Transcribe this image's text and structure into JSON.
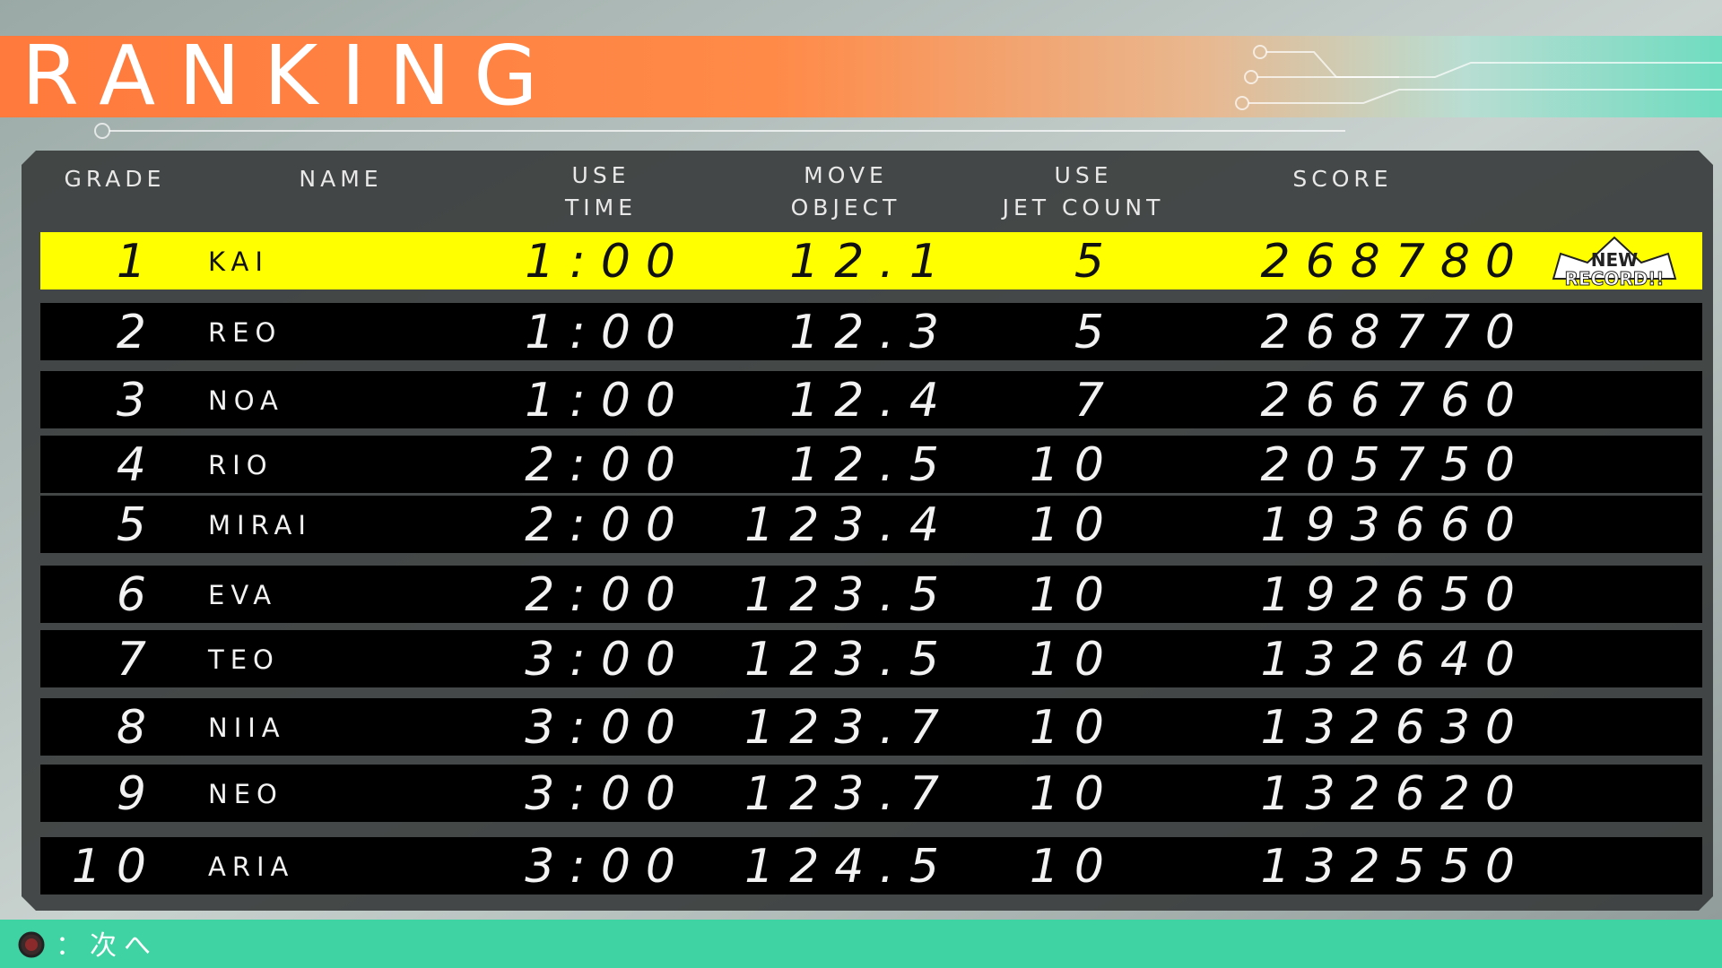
{
  "header": {
    "title": "RANKING"
  },
  "table": {
    "columns": [
      [
        "GRADE"
      ],
      [
        "NAME"
      ],
      [
        "USE",
        "TIME"
      ],
      [
        "MOVE",
        "OBJECT"
      ],
      [
        "USE",
        "JET COUNT"
      ],
      [
        "SCORE"
      ]
    ],
    "rows": [
      [
        "1",
        "KAI",
        "1:00",
        "12.1",
        "5",
        "268780"
      ],
      [
        "2",
        "REO",
        "1:00",
        "12.3",
        "5",
        "268770"
      ],
      [
        "3",
        "NOA",
        "1:00",
        "12.4",
        "7",
        "266760"
      ],
      [
        "4",
        "RIO",
        "2:00",
        "12.5",
        "10",
        "205750"
      ],
      [
        "5",
        "MIRAI",
        "2:00",
        "123.4",
        "10",
        "193660"
      ],
      [
        "6",
        "EVA",
        "2:00",
        "123.5",
        "10",
        "192650"
      ],
      [
        "7",
        "TEO",
        "3:00",
        "123.5",
        "10",
        "132640"
      ],
      [
        "8",
        "NIIA",
        "3:00",
        "123.7",
        "10",
        "132630"
      ],
      [
        "9",
        "NEO",
        "3:00",
        "123.7",
        "10",
        "132620"
      ],
      [
        "10",
        "ARIA",
        "3:00",
        "124.5",
        "10",
        "132550"
      ]
    ],
    "new_record": [
      "NEW",
      "RECORD!!"
    ]
  },
  "footer": {
    "hint": "：次へ"
  }
}
